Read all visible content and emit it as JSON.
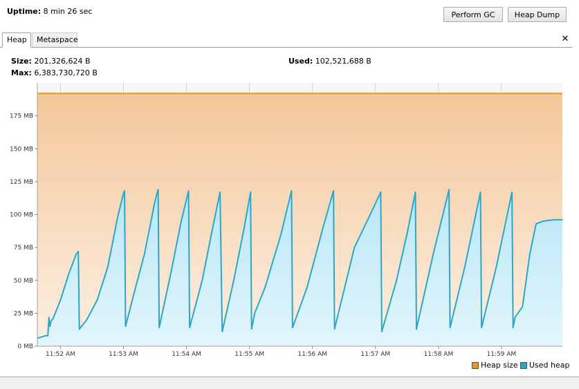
{
  "header": {
    "uptime_label": "Uptime:",
    "uptime_value": "8 min 26 sec",
    "perform_gc_label": "Perform GC",
    "heap_dump_label": "Heap Dump"
  },
  "tabs": [
    {
      "label": "Heap",
      "selected": true
    },
    {
      "label": "Metaspace",
      "selected": false
    }
  ],
  "close_glyph": "✕",
  "stats": {
    "size_label": "Size:",
    "size_value": "201,326,624 B",
    "max_label": "Max:",
    "max_value": "6,383,730,720 B",
    "used_label": "Used:",
    "used_value": "102,521,688 B"
  },
  "legend": {
    "heap_size": "Heap size",
    "used_heap": "Used heap"
  },
  "colors": {
    "heap_fill_top": "#f3c79a",
    "heap_fill_bottom": "#fdf0e3",
    "heap_line": "#e8962e",
    "used_fill_top": "#b8e6f6",
    "used_fill_bottom": "#e2f6fc",
    "used_line": "#2aa6c8"
  },
  "chart_data": {
    "type": "area",
    "ylim": [
      0,
      200
    ],
    "yticks": [
      {
        "value": 0,
        "label": "0 MB"
      },
      {
        "value": 25,
        "label": "25 MB"
      },
      {
        "value": 50,
        "label": "50 MB"
      },
      {
        "value": 75,
        "label": "75 MB"
      },
      {
        "value": 100,
        "label": "100 MB"
      },
      {
        "value": 125,
        "label": "125 MB"
      },
      {
        "value": 150,
        "label": "150 MB"
      },
      {
        "value": 175,
        "label": "175 MB"
      }
    ],
    "xlim": [
      "11:51:38",
      "11:59:58"
    ],
    "xticks": [
      {
        "value": "11:52:00",
        "label": "11:52 AM"
      },
      {
        "value": "11:53:00",
        "label": "11:53 AM"
      },
      {
        "value": "11:54:00",
        "label": "11:54 AM"
      },
      {
        "value": "11:55:00",
        "label": "11:55 AM"
      },
      {
        "value": "11:56:00",
        "label": "11:56 AM"
      },
      {
        "value": "11:57:00",
        "label": "11:57 AM"
      },
      {
        "value": "11:58:00",
        "label": "11:58 AM"
      },
      {
        "value": "11:59:00",
        "label": "11:59 AM"
      }
    ],
    "series": [
      {
        "name": "Heap size",
        "points": [
          [
            "11:51:38",
            192
          ],
          [
            "11:59:58",
            192
          ]
        ]
      },
      {
        "name": "Used heap",
        "points": [
          [
            "11:51:38",
            6
          ],
          [
            "11:51:42",
            7
          ],
          [
            "11:51:46",
            8
          ],
          [
            "11:51:48",
            8
          ],
          [
            "11:51:49",
            22
          ],
          [
            "11:51:50",
            15
          ],
          [
            "11:51:51",
            19
          ],
          [
            "11:51:53",
            21
          ],
          [
            "11:52:00",
            35
          ],
          [
            "11:52:08",
            55
          ],
          [
            "11:52:15",
            70
          ],
          [
            "11:52:17",
            72
          ],
          [
            "11:52:18",
            13
          ],
          [
            "11:52:25",
            20
          ],
          [
            "11:52:35",
            35
          ],
          [
            "11:52:45",
            60
          ],
          [
            "11:52:55",
            100
          ],
          [
            "11:53:00",
            116
          ],
          [
            "11:53:01",
            118
          ],
          [
            "11:53:02",
            15
          ],
          [
            "11:53:10",
            40
          ],
          [
            "11:53:20",
            70
          ],
          [
            "11:53:30",
            110
          ],
          [
            "11:53:33",
            119
          ],
          [
            "11:53:34",
            14
          ],
          [
            "11:53:45",
            55
          ],
          [
            "11:53:55",
            95
          ],
          [
            "11:54:02",
            118
          ],
          [
            "11:54:03",
            14
          ],
          [
            "11:54:15",
            50
          ],
          [
            "11:54:25",
            90
          ],
          [
            "11:54:32",
            117
          ],
          [
            "11:54:34",
            11
          ],
          [
            "11:54:45",
            50
          ],
          [
            "11:54:55",
            90
          ],
          [
            "11:55:01",
            117
          ],
          [
            "11:55:02",
            13
          ],
          [
            "11:55:05",
            25
          ],
          [
            "11:55:15",
            45
          ],
          [
            "11:55:30",
            85
          ],
          [
            "11:55:40",
            118
          ],
          [
            "11:55:41",
            14
          ],
          [
            "11:55:55",
            45
          ],
          [
            "11:56:10",
            90
          ],
          [
            "11:56:20",
            118
          ],
          [
            "11:56:21",
            13
          ],
          [
            "11:56:40",
            75
          ],
          [
            "11:56:55",
            100
          ],
          [
            "11:57:05",
            117
          ],
          [
            "11:57:06",
            11
          ],
          [
            "11:57:20",
            50
          ],
          [
            "11:57:30",
            85
          ],
          [
            "11:57:38",
            117
          ],
          [
            "11:57:39",
            13
          ],
          [
            "11:57:55",
            70
          ],
          [
            "11:58:10",
            119
          ],
          [
            "11:58:11",
            14
          ],
          [
            "11:58:25",
            60
          ],
          [
            "11:58:40",
            117
          ],
          [
            "11:58:41",
            14
          ],
          [
            "11:58:55",
            60
          ],
          [
            "11:59:10",
            117
          ],
          [
            "11:59:11",
            14
          ],
          [
            "11:59:13",
            22
          ],
          [
            "11:59:20",
            30
          ],
          [
            "11:59:27",
            70
          ],
          [
            "11:59:33",
            93
          ],
          [
            "11:59:40",
            95
          ],
          [
            "11:59:50",
            96
          ],
          [
            "11:59:58",
            96
          ]
        ]
      }
    ]
  }
}
